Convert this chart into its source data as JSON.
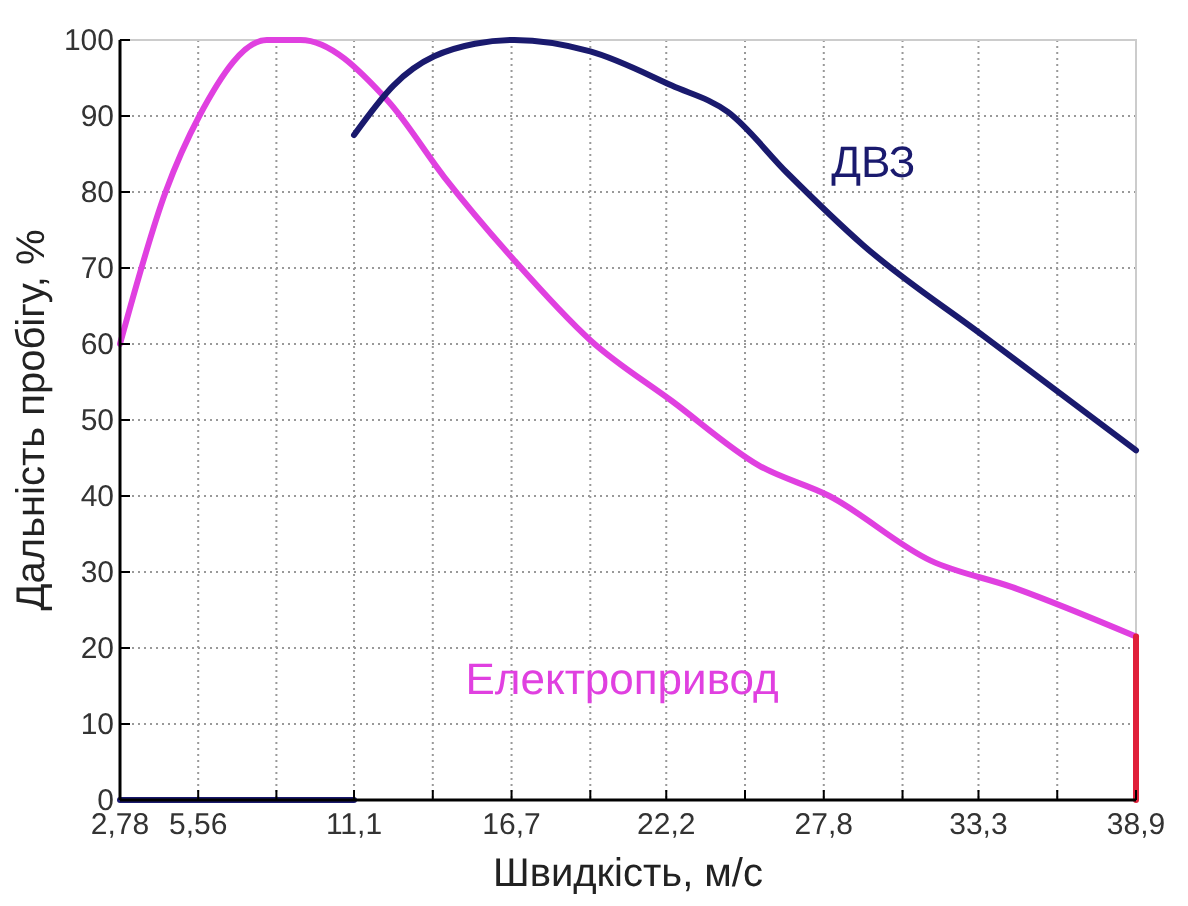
{
  "chart_data": {
    "type": "line",
    "xlabel": "Швидкість, м/с",
    "ylabel": "Дальність пробігу, %",
    "xlim": [
      2.78,
      38.9
    ],
    "ylim": [
      0,
      100
    ],
    "xticks": [
      {
        "value": 2.78,
        "label": "2,78"
      },
      {
        "value": 5.56,
        "label": "5,56"
      },
      {
        "value": 8.34,
        "label": null
      },
      {
        "value": 11.1,
        "label": "11,1"
      },
      {
        "value": 13.9,
        "label": null
      },
      {
        "value": 16.7,
        "label": "16,7"
      },
      {
        "value": 19.5,
        "label": null
      },
      {
        "value": 22.2,
        "label": "22,2"
      },
      {
        "value": 25.0,
        "label": null
      },
      {
        "value": 27.8,
        "label": "27,8"
      },
      {
        "value": 30.6,
        "label": null
      },
      {
        "value": 33.3,
        "label": "33,3"
      },
      {
        "value": 36.1,
        "label": null
      },
      {
        "value": 38.9,
        "label": "38,9"
      }
    ],
    "yticks": [
      0,
      10,
      20,
      30,
      40,
      50,
      60,
      70,
      80,
      90,
      100
    ],
    "grid": true,
    "line_style": "solid",
    "marker": "none",
    "series": [
      {
        "name": "Електропривод",
        "color": "#e040e0",
        "x": [
          2.78,
          4.4,
          5.6,
          8.0,
          9.2,
          12.3,
          14.3,
          16.8,
          19.5,
          22.4,
          25.5,
          28.0,
          31.6,
          34.5,
          38.9
        ],
        "values": [
          60,
          80,
          90,
          100,
          100,
          92,
          82,
          71,
          60.5,
          52.5,
          44,
          40,
          31.5,
          28,
          21.5
        ]
      },
      {
        "name": "ДВЗ",
        "color": "#1a1a6e",
        "x": [
          11.1,
          12.5,
          15.4,
          16.8,
          19.5,
          22.4,
          24.4,
          26.5,
          29.2,
          33.5,
          38.9
        ],
        "values": [
          87.5,
          94,
          99.5,
          100,
          98.5,
          94,
          90.5,
          82.5,
          73,
          61,
          46
        ]
      },
      {
        "color": "#1a1a6e",
        "x": [
          2.78,
          11.1
        ],
        "values": [
          0,
          0
        ]
      },
      {
        "color": "#e0203a",
        "x": [
          38.9,
          38.9
        ],
        "values": [
          0,
          21.5
        ]
      }
    ]
  }
}
